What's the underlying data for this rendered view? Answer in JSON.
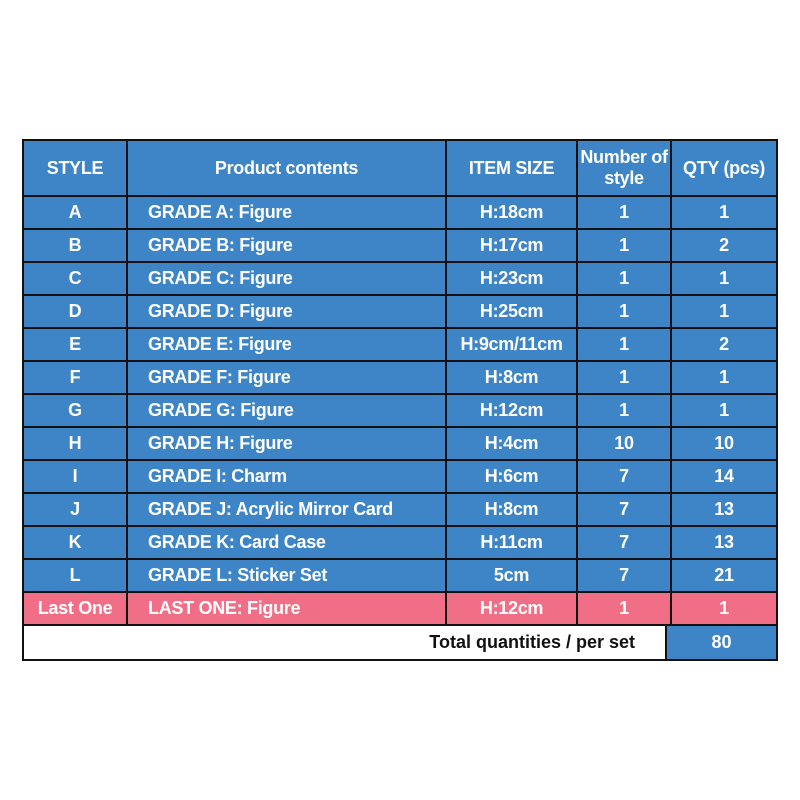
{
  "colors": {
    "header_bg": "#3d85c6",
    "row_bg": "#3d85c6",
    "last_one_bg": "#f06f87",
    "border": "#111111"
  },
  "headers": [
    "STYLE",
    "Product contents",
    "ITEM SIZE",
    "Number of style",
    "QTY (pcs)"
  ],
  "rows": [
    [
      "A",
      "GRADE A:  Figure",
      "H:18cm",
      "1",
      "1"
    ],
    [
      "B",
      "GRADE B:  Figure",
      "H:17cm",
      "1",
      "2"
    ],
    [
      "C",
      "GRADE C:  Figure",
      "H:23cm",
      "1",
      "1"
    ],
    [
      "D",
      "GRADE D:  Figure",
      "H:25cm",
      "1",
      "1"
    ],
    [
      "E",
      "GRADE E:  Figure",
      "H:9cm/11cm",
      "1",
      "2"
    ],
    [
      "F",
      "GRADE F:  Figure",
      "H:8cm",
      "1",
      "1"
    ],
    [
      "G",
      "GRADE G:  Figure",
      "H:12cm",
      "1",
      "1"
    ],
    [
      "H",
      "GRADE H:  Figure",
      "H:4cm",
      "10",
      "10"
    ],
    [
      "I",
      "GRADE I:  Charm",
      "H:6cm",
      "7",
      "14"
    ],
    [
      "J",
      "GRADE J:  Acrylic Mirror Card",
      "H:8cm",
      "7",
      "13"
    ],
    [
      "K",
      "GRADE K:  Card Case",
      "H:11cm",
      "7",
      "13"
    ],
    [
      "L",
      "GRADE L:  Sticker Set",
      "5cm",
      "7",
      "21"
    ],
    [
      "Last One",
      "LAST ONE:  Figure",
      "H:12cm",
      "1",
      "1"
    ]
  ],
  "total": {
    "label": "Total quantities / per set",
    "value": "80"
  }
}
